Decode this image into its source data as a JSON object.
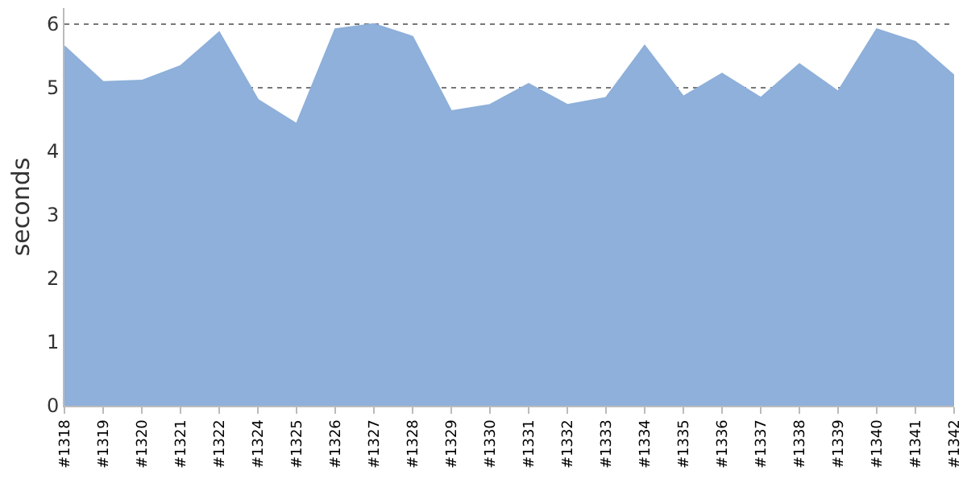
{
  "chart_data": {
    "type": "area",
    "ylabel": "seconds",
    "categories": [
      "#1318",
      "#1319",
      "#1320",
      "#1321",
      "#1322",
      "#1324",
      "#1325",
      "#1326",
      "#1327",
      "#1328",
      "#1329",
      "#1330",
      "#1331",
      "#1332",
      "#1333",
      "#1334",
      "#1335",
      "#1336",
      "#1337",
      "#1338",
      "#1339",
      "#1340",
      "#1341",
      "#1342"
    ],
    "series": [
      {
        "color": "#8eb0da",
        "values": [
          5.65,
          5.09,
          5.11,
          5.34,
          5.87,
          4.81,
          4.43,
          5.92,
          6.0,
          5.8,
          4.63,
          4.73,
          5.06,
          4.73,
          4.84,
          5.66,
          4.86,
          5.22,
          4.84,
          5.37,
          4.94,
          5.92,
          5.72,
          5.19
        ]
      }
    ],
    "ylim": [
      0,
      6.25
    ],
    "yticks": [
      0,
      1,
      2,
      3,
      4,
      5,
      6
    ],
    "grid": "y"
  }
}
